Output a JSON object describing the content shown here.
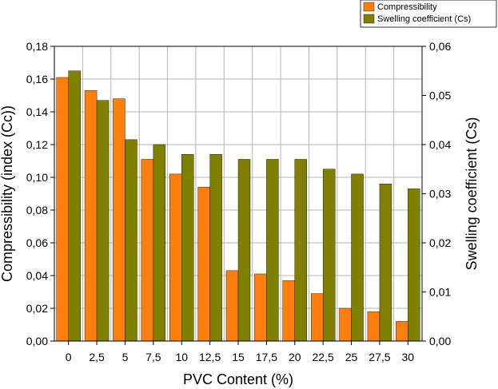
{
  "chart_data": {
    "type": "bar",
    "xlabel": "PVC Content (%)",
    "ylabel_left": "Compressibility (index (Cc))",
    "ylabel_right": "Swelling coefficient (Cs)",
    "categories": [
      "0",
      "2,5",
      "5",
      "7,5",
      "10",
      "12,5",
      "15",
      "17,5",
      "20",
      "22,5",
      "25",
      "27,5",
      "30"
    ],
    "ylim_left": [
      0,
      0.18
    ],
    "ylim_right": [
      0,
      0.06
    ],
    "yticks_left": [
      "0,00",
      "0,02",
      "0,04",
      "0,06",
      "0,08",
      "0,10",
      "0,12",
      "0,14",
      "0,16",
      "0,18"
    ],
    "yticks_right": [
      "0,00",
      "0,01",
      "0,02",
      "0,03",
      "0,04",
      "0,05",
      "0,06"
    ],
    "grid": true,
    "legend_position": "top-right",
    "series": [
      {
        "name": "Compressibility",
        "axis": "left",
        "color": "#ff7f0e",
        "values": [
          0.161,
          0.153,
          0.148,
          0.111,
          0.102,
          0.094,
          0.043,
          0.041,
          0.037,
          0.029,
          0.02,
          0.018,
          0.012
        ]
      },
      {
        "name": "Swelling coefficient (Cs)",
        "axis": "right",
        "color": "#808000",
        "values": [
          0.055,
          0.049,
          0.041,
          0.04,
          0.038,
          0.038,
          0.037,
          0.037,
          0.037,
          0.035,
          0.034,
          0.032,
          0.031
        ]
      }
    ]
  }
}
